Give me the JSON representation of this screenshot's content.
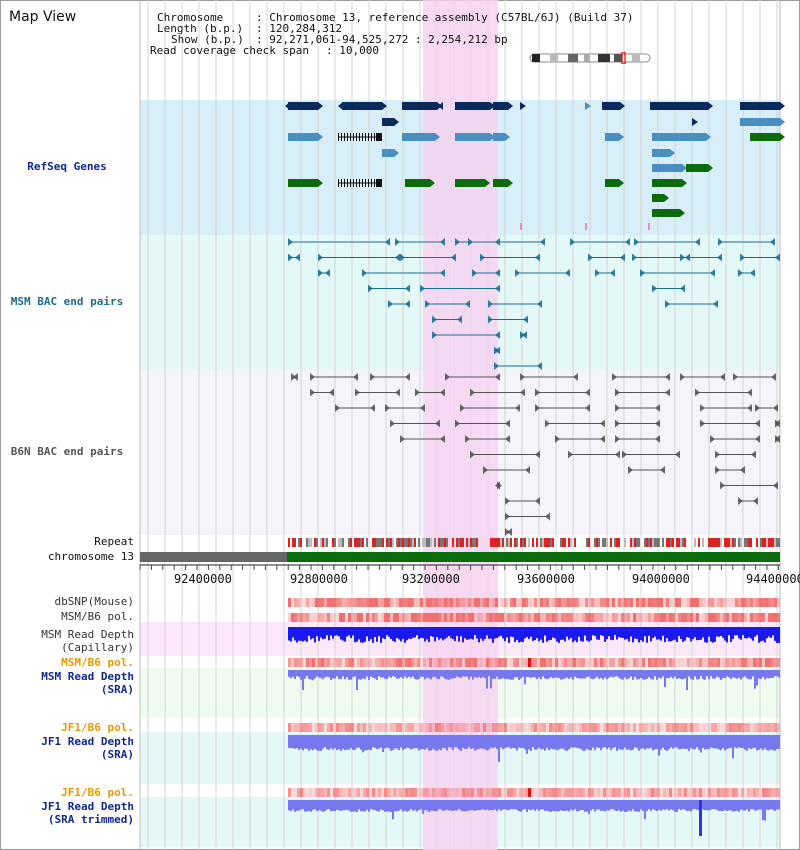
{
  "header": {
    "title": "Map View",
    "chromosome_key": "Chromosome",
    "chromosome_value": ": Chromosome 13, reference assembly (C57BL/6J) (Build 37)",
    "length_key": "Length (b.p.)",
    "length_value": ": 120,284,312",
    "show_key": "Show (b.p.)",
    "show_value": ": 92,271,061-94,525,272 : 2,254,212 bp",
    "coverage_key": "Read coverage check span",
    "coverage_value": ": 10,000"
  },
  "tracks": {
    "refseq": "RefSeq Genes",
    "msm_bac": "MSM BAC end pairs",
    "b6n_bac": "B6N BAC end pairs",
    "repeat": "Repeat",
    "chromosome": "chromosome 13",
    "dbsnp": "dbSNP(Mouse)",
    "msm_b6_pol_1": "MSM/B6 pol.",
    "msm_read_depth_cap_1": "MSM Read Depth",
    "msm_read_depth_cap_2": "(Capillary)",
    "msm_b6_pol_2": "MSM/B6 pol.",
    "msm_read_depth_sra_1": "MSM Read Depth",
    "msm_read_depth_sra_2": "(SRA)",
    "jf1_b6_pol_1": "JF1/B6 pol.",
    "jf1_read_depth_sra_1": "JF1 Read Depth",
    "jf1_read_depth_sra_2": "(SRA)",
    "jf1_b6_pol_2": "JF1/B6 pol.",
    "jf1_read_depth_trim_1": "JF1 Read Depth",
    "jf1_read_depth_trim_2": "(SRA trimmed)"
  },
  "axis": {
    "ticks": [
      "92400000",
      "92800000",
      "93200000",
      "93600000",
      "94000000",
      "94400000"
    ]
  },
  "colors": {
    "refseq_bg": "#d8eef8",
    "msm_bg": "#e4f8f8",
    "b6n_bg": "#f4f4fa",
    "highlight": "#f6d4f0",
    "gene_navy": "#0a2a5c",
    "gene_blue": "#4a8fbf",
    "gene_green": "#0d6b0d",
    "msm_line": "#1a6d8f",
    "b6n_line": "#555555",
    "depth_blue": "#1a1aee",
    "depth_light": "#7777ee",
    "pol_red": "#f07070",
    "label_navy": "#102a8c",
    "label_teal": "#1a6d8f",
    "label_gray": "#555555",
    "label_orange": "#e89a00"
  }
}
